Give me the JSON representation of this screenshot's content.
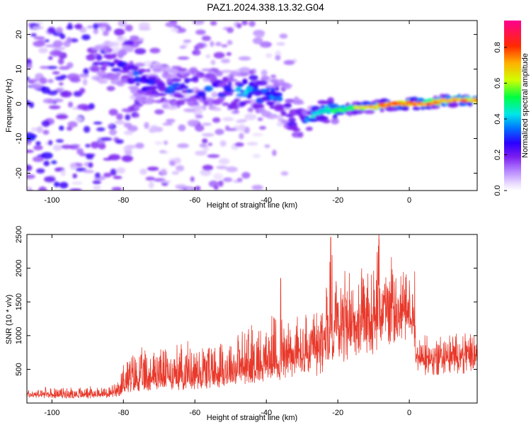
{
  "title": "PAZ1.2024.338.13.32.G04",
  "colors": {
    "trace": "#e8392b",
    "frame": "#000000"
  },
  "chart_data": [
    {
      "type": "heatmap",
      "title": "PAZ1.2024.338.13.32.G04",
      "xlabel": "Height of straight line (km)",
      "ylabel": "Frequency (Hz)",
      "xlim": [
        -107,
        19
      ],
      "ylim": [
        -25,
        24
      ],
      "xticks": [
        -100,
        -80,
        -60,
        -40,
        -20,
        0
      ],
      "yticks": [
        -20,
        -10,
        0,
        10,
        20
      ],
      "colorbar": {
        "label": "Normalized spectral amplitude",
        "range": [
          0,
          0.95
        ],
        "ticks": [
          0.0,
          0.2,
          0.4,
          0.6,
          0.8
        ],
        "colormap": "rainbow: white-violet-purple-blue-cyan-green-yellow-orange-red-pink"
      },
      "ridge": [
        {
          "x": -85,
          "y": 12,
          "a": 0.25
        },
        {
          "x": -80,
          "y": 11,
          "a": 0.3
        },
        {
          "x": -75,
          "y": 7,
          "a": 0.35
        },
        {
          "x": -70,
          "y": 5,
          "a": 0.3
        },
        {
          "x": -65,
          "y": 4,
          "a": 0.35
        },
        {
          "x": -60,
          "y": 5,
          "a": 0.35
        },
        {
          "x": -55,
          "y": 4,
          "a": 0.3
        },
        {
          "x": -50,
          "y": 3,
          "a": 0.35
        },
        {
          "x": -45,
          "y": 4,
          "a": 0.45
        },
        {
          "x": -40,
          "y": 3,
          "a": 0.4
        },
        {
          "x": -35,
          "y": 1,
          "a": 0.35
        },
        {
          "x": -33,
          "y": -4,
          "a": 0.35
        },
        {
          "x": -28,
          "y": -5,
          "a": 0.4
        },
        {
          "x": -25,
          "y": -2,
          "a": 0.45
        },
        {
          "x": -20,
          "y": -2,
          "a": 0.5
        },
        {
          "x": -15,
          "y": -1,
          "a": 0.6
        },
        {
          "x": -10,
          "y": -1,
          "a": 0.7
        },
        {
          "x": -5,
          "y": 0,
          "a": 0.75
        },
        {
          "x": 0,
          "y": 0,
          "a": 0.8
        },
        {
          "x": 5,
          "y": 0,
          "a": 0.75
        },
        {
          "x": 10,
          "y": 1,
          "a": 0.7
        },
        {
          "x": 15,
          "y": 1,
          "a": 0.75
        },
        {
          "x": 19,
          "y": 1,
          "a": 0.7
        }
      ]
    },
    {
      "type": "line",
      "xlabel": "Height of straight line (km)",
      "ylabel": "SNR (10 * v/v)",
      "xlim": [
        -107,
        19
      ],
      "ylim": [
        0,
        2500
      ],
      "xticks": [
        -100,
        -80,
        -60,
        -40,
        -20,
        0
      ],
      "yticks": [
        500,
        1000,
        1500,
        2000,
        2500
      ],
      "series": [
        {
          "envelope": {
            "x": [
              -107,
              -95,
              -85,
              -81,
              -80,
              -75,
              -70,
              -60,
              -50,
              -45,
              -40,
              -36,
              -30,
              -25,
              -22,
              -20,
              -15,
              -10,
              -8,
              -5,
              -2,
              0,
              1,
              2,
              5,
              10,
              15,
              19
            ],
            "base": [
              120,
              120,
              130,
              150,
              260,
              300,
              330,
              360,
              400,
              470,
              520,
              600,
              650,
              720,
              950,
              1000,
              1200,
              1300,
              1350,
              1400,
              1500,
              1450,
              1400,
              780,
              720,
              720,
              760,
              780
            ],
            "peak": [
              230,
              240,
              260,
              320,
              720,
              820,
              880,
              950,
              1050,
              1200,
              1250,
              1400,
              1350,
              1450,
              2450,
              2200,
              1900,
              2150,
              2500,
              2100,
              1950,
              2000,
              1950,
              1050,
              1000,
              1050,
              1080,
              1100
            ]
          },
          "spikes": [
            {
              "x": -36,
              "y": 1850
            },
            {
              "x": -22,
              "y": 2460
            },
            {
              "x": -8.5,
              "y": 2500
            },
            {
              "x": -5,
              "y": 2160
            },
            {
              "x": 1.5,
              "y": 1950
            }
          ]
        }
      ]
    }
  ]
}
